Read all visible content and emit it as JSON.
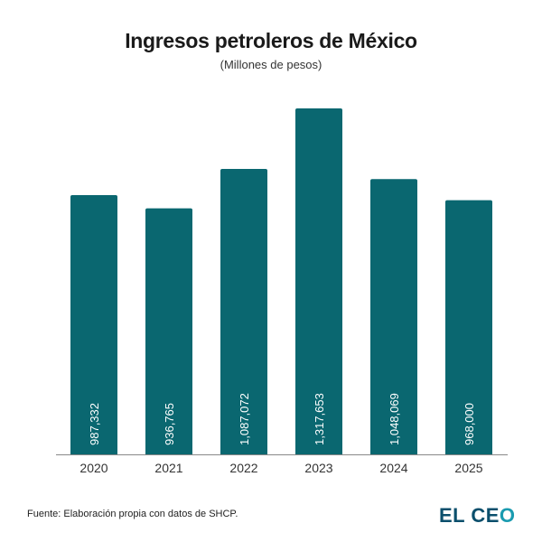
{
  "chart_data": {
    "type": "bar",
    "title": "Ingresos petroleros de México",
    "subtitle": "(Millones de pesos)",
    "categories": [
      "2020",
      "2021",
      "2022",
      "2023",
      "2024",
      "2025"
    ],
    "values": [
      987332,
      936765,
      1087072,
      1317653,
      1048069,
      968000
    ],
    "value_labels": [
      "987,332",
      "936,765",
      "1,087,072",
      "1,317,653",
      "1,048,069",
      "968,000"
    ],
    "xlabel": "",
    "ylabel": "",
    "ylim": [
      0,
      1400000
    ],
    "grid": false,
    "legend": "none",
    "bar_color": "#0a6770"
  },
  "footer": {
    "source": "Fuente: Elaboración propia con datos de SHCP.",
    "logo": "EL CEO"
  }
}
